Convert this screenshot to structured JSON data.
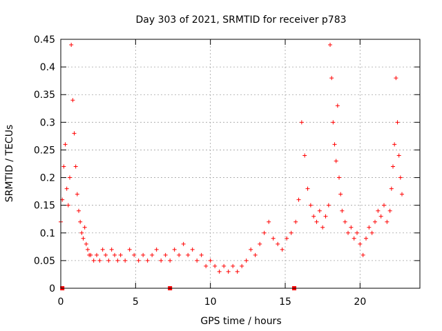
{
  "chart_data": {
    "type": "scatter",
    "title": "Day 303 of 2021, SRMTID for receiver p783",
    "xlabel": "GPS time / hours",
    "ylabel": "SRMTID / TECUs",
    "xlim": [
      0,
      24
    ],
    "ylim": [
      0,
      0.45
    ],
    "x_ticks": [
      0,
      5,
      10,
      15,
      20
    ],
    "x_tick_labels": [
      "0",
      "5",
      "10",
      "15",
      "20"
    ],
    "y_ticks": [
      0,
      0.05,
      0.1,
      0.15,
      0.2,
      0.25,
      0.3,
      0.35,
      0.4,
      0.45
    ],
    "y_tick_labels": [
      "0",
      "0.05",
      "0.1",
      "0.15",
      "0.2",
      "0.25",
      "0.3",
      "0.35",
      "0.4",
      "0.45"
    ],
    "grid": true,
    "marker": "+",
    "color": "#ff0000",
    "baseline_markers_x": [
      0.1,
      7.3,
      15.6
    ],
    "series": [
      {
        "name": "SRMTID",
        "x": [
          0.0,
          0.1,
          0.2,
          0.3,
          0.4,
          0.5,
          0.6,
          0.7,
          0.8,
          0.9,
          1.0,
          1.1,
          1.2,
          1.3,
          1.4,
          1.5,
          1.6,
          1.7,
          1.8,
          1.9,
          2.0,
          2.2,
          2.4,
          2.6,
          2.8,
          3.0,
          3.2,
          3.4,
          3.6,
          3.8,
          4.0,
          4.3,
          4.6,
          4.9,
          5.2,
          5.5,
          5.8,
          6.1,
          6.4,
          6.7,
          7.0,
          7.3,
          7.6,
          7.9,
          8.2,
          8.5,
          8.8,
          9.1,
          9.4,
          9.7,
          10.0,
          10.3,
          10.6,
          10.9,
          11.2,
          11.5,
          11.8,
          12.1,
          12.4,
          12.7,
          13.0,
          13.3,
          13.6,
          13.9,
          14.2,
          14.5,
          14.8,
          15.1,
          15.4,
          15.7,
          15.9,
          16.1,
          16.3,
          16.5,
          16.7,
          16.9,
          17.1,
          17.3,
          17.5,
          17.7,
          17.9,
          18.0,
          18.1,
          18.2,
          18.3,
          18.4,
          18.5,
          18.6,
          18.7,
          18.8,
          19.0,
          19.2,
          19.4,
          19.6,
          19.8,
          20.0,
          20.2,
          20.4,
          20.6,
          20.8,
          21.0,
          21.2,
          21.4,
          21.6,
          21.8,
          22.0,
          22.1,
          22.2,
          22.3,
          22.4,
          22.5,
          22.6,
          22.7,
          22.8
        ],
        "y": [
          0.12,
          0.16,
          0.22,
          0.26,
          0.18,
          0.15,
          0.2,
          0.44,
          0.34,
          0.28,
          0.22,
          0.17,
          0.14,
          0.12,
          0.1,
          0.09,
          0.11,
          0.08,
          0.07,
          0.06,
          0.06,
          0.05,
          0.06,
          0.05,
          0.07,
          0.06,
          0.05,
          0.07,
          0.06,
          0.05,
          0.06,
          0.05,
          0.07,
          0.06,
          0.05,
          0.06,
          0.05,
          0.06,
          0.07,
          0.05,
          0.06,
          0.05,
          0.07,
          0.06,
          0.08,
          0.06,
          0.07,
          0.05,
          0.06,
          0.04,
          0.05,
          0.04,
          0.03,
          0.04,
          0.03,
          0.04,
          0.03,
          0.04,
          0.05,
          0.07,
          0.06,
          0.08,
          0.1,
          0.12,
          0.09,
          0.08,
          0.07,
          0.09,
          0.1,
          0.12,
          0.16,
          0.3,
          0.24,
          0.18,
          0.15,
          0.13,
          0.12,
          0.14,
          0.11,
          0.13,
          0.15,
          0.44,
          0.38,
          0.3,
          0.26,
          0.23,
          0.33,
          0.2,
          0.17,
          0.14,
          0.12,
          0.1,
          0.11,
          0.09,
          0.1,
          0.08,
          0.06,
          0.09,
          0.11,
          0.1,
          0.12,
          0.14,
          0.13,
          0.15,
          0.12,
          0.14,
          0.18,
          0.22,
          0.26,
          0.38,
          0.3,
          0.24,
          0.2,
          0.17
        ]
      }
    ]
  }
}
